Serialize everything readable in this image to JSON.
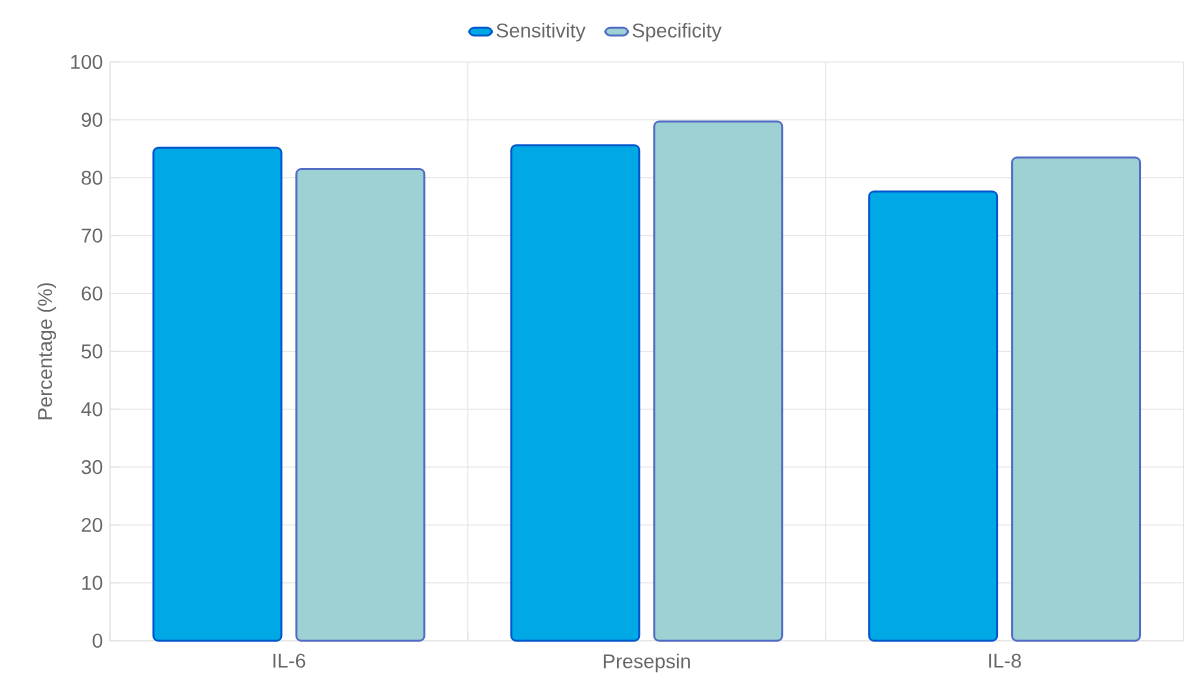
{
  "chart_data": {
    "type": "bar",
    "ylabel": "Percentage (%)",
    "categories": [
      "IL-6",
      "Presepsin",
      "IL-8"
    ],
    "series": [
      {
        "name": "Sensitivity",
        "color": "#00a8e6",
        "values": [
          85.2,
          85.6,
          77.6
        ]
      },
      {
        "name": "Specificity",
        "color": "#9dd1d4",
        "values": [
          81.5,
          89.7,
          83.5
        ]
      }
    ],
    "ylim": [
      0,
      100
    ],
    "yticks": [
      0,
      10,
      20,
      30,
      40,
      50,
      60,
      70,
      80,
      90,
      100
    ],
    "grid": true,
    "legend": "top"
  }
}
